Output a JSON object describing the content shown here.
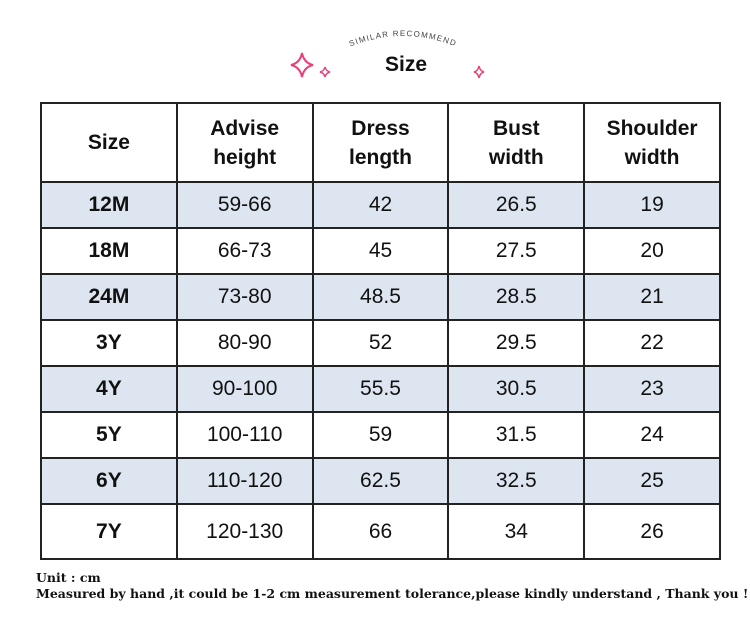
{
  "header": {
    "subtitle": "SIMILAR RECOMMEND",
    "title": "Size"
  },
  "table": {
    "columns": [
      "Size",
      "Advise\nheight",
      "Dress\nlength",
      "Bust\nwidth",
      "Shoulder\nwidth"
    ],
    "rows": [
      [
        "12M",
        "59-66",
        "42",
        "26.5",
        "19"
      ],
      [
        "18M",
        "66-73",
        "45",
        "27.5",
        "20"
      ],
      [
        "24M",
        "73-80",
        "48.5",
        "28.5",
        "21"
      ],
      [
        "3Y",
        "80-90",
        "52",
        "29.5",
        "22"
      ],
      [
        "4Y",
        "90-100",
        "55.5",
        "30.5",
        "23"
      ],
      [
        "5Y",
        "100-110",
        "59",
        "31.5",
        "24"
      ],
      [
        "6Y",
        "110-120",
        "62.5",
        "32.5",
        "25"
      ],
      [
        "7Y",
        "120-130",
        "66",
        "34",
        "26"
      ]
    ]
  },
  "footer": {
    "unit": "Unit : cm",
    "note": "Measured by hand ,it could be 1-2 cm measurement tolerance,please kindly understand , Thank you !"
  }
}
